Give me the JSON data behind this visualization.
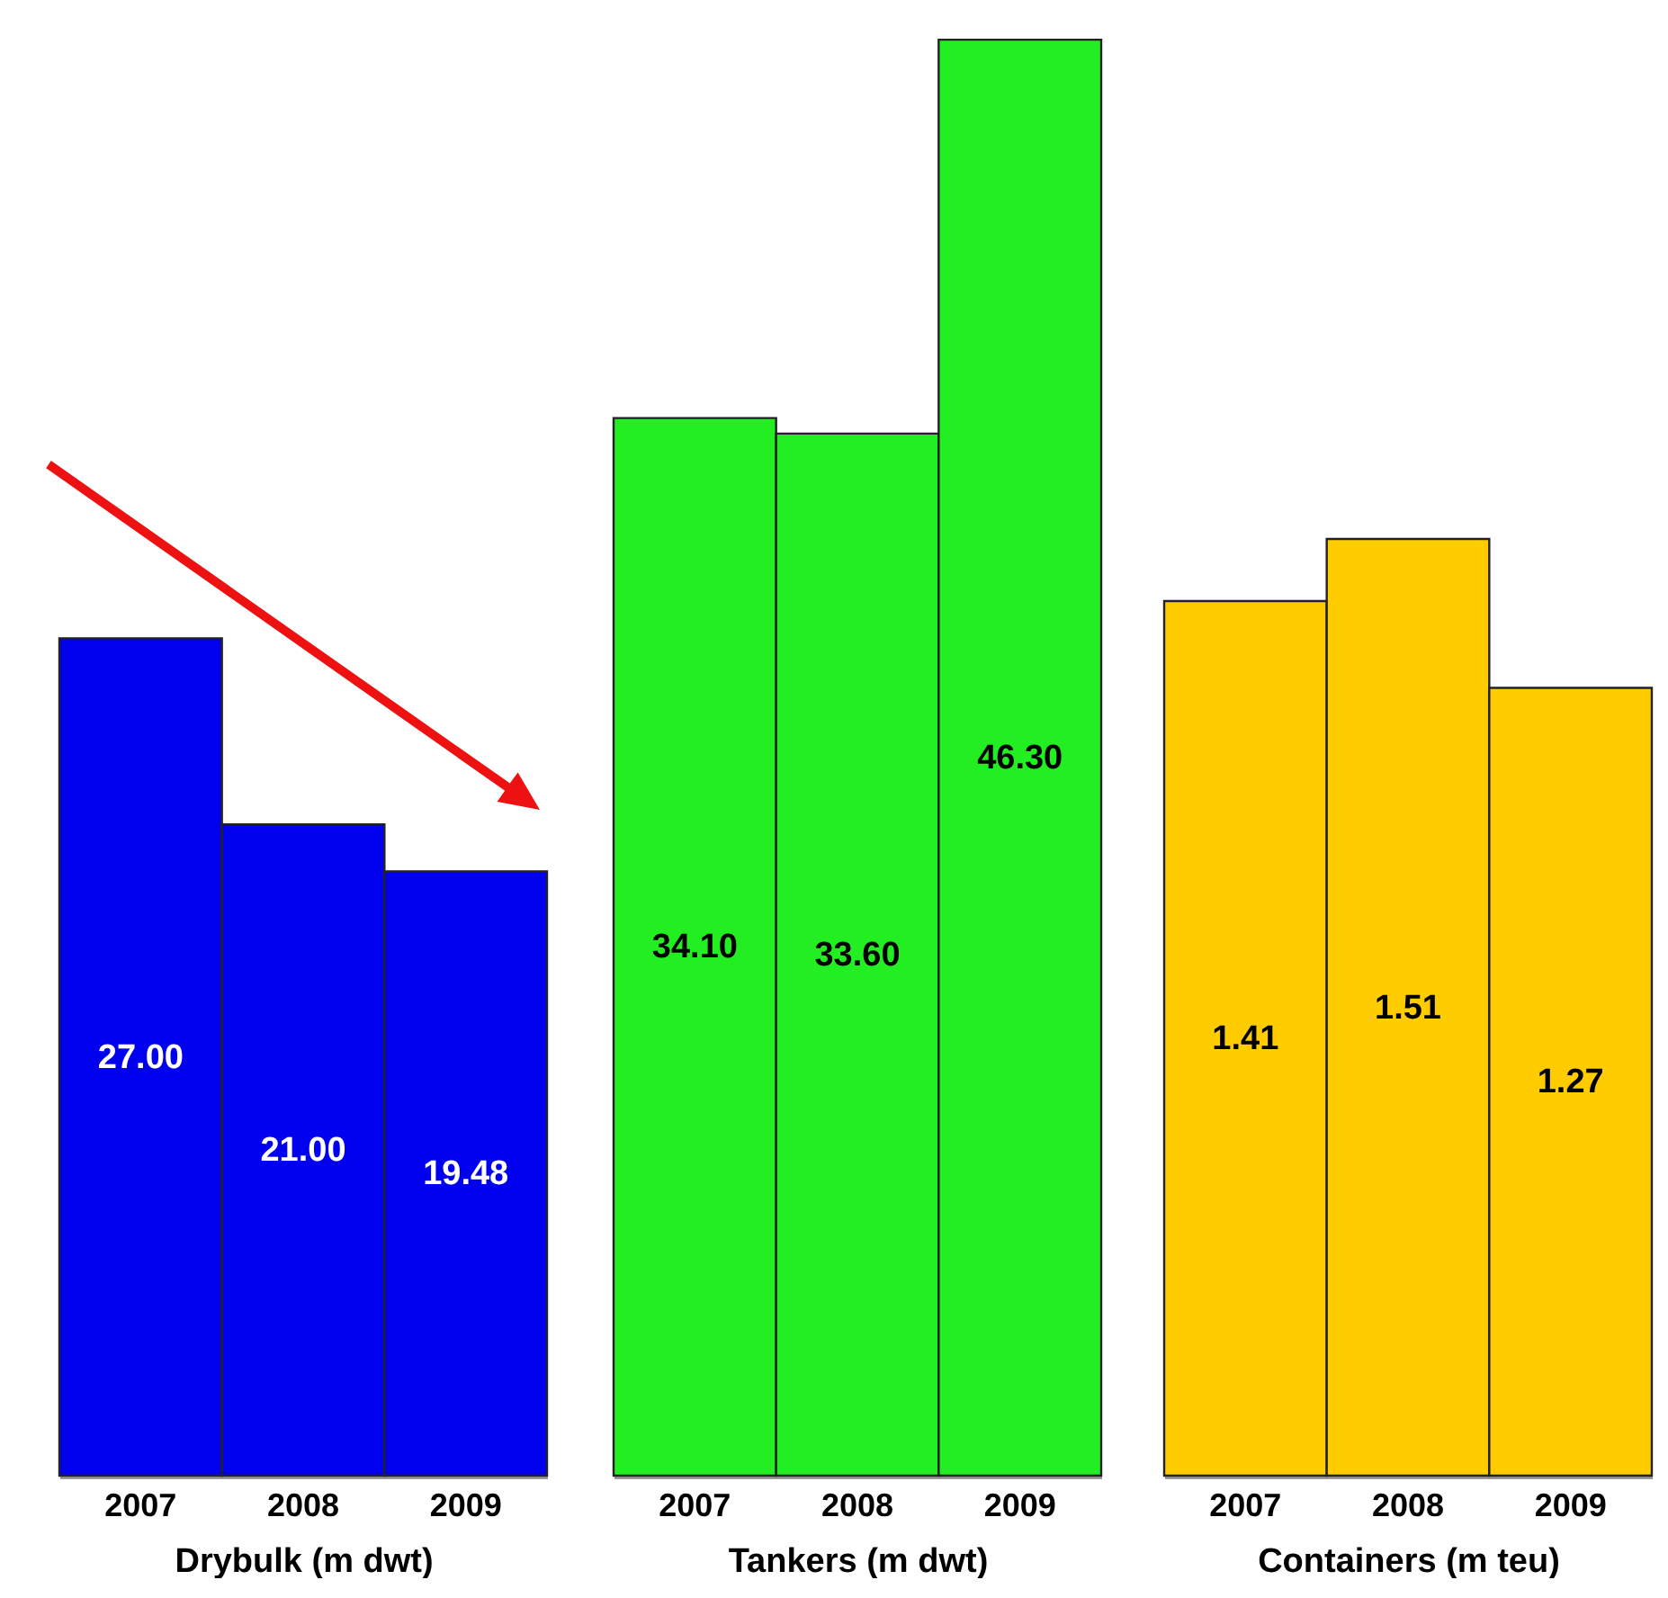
{
  "chart_data": [
    {
      "type": "bar",
      "categories": [
        "2007",
        "2008",
        "2009"
      ],
      "values": [
        27.0,
        21.0,
        19.48
      ],
      "color": "#0000ee",
      "xlabel": "Drybulk (m dwt)",
      "ylim": [
        0,
        47
      ],
      "tick_labels": "x",
      "data_labels": true,
      "value_labels": [
        "27.00",
        "21.00",
        "19.48"
      ]
    },
    {
      "type": "bar",
      "categories": [
        "2007",
        "2008",
        "2009"
      ],
      "values": [
        34.1,
        33.6,
        46.3
      ],
      "color": "#22ee22",
      "xlabel": "Tankers (m dwt)",
      "ylim": [
        0,
        47
      ],
      "tick_labels": "x",
      "data_labels": true,
      "value_labels": [
        "34.10",
        "33.60",
        "46.30"
      ]
    },
    {
      "type": "bar",
      "categories": [
        "2007",
        "2008",
        "2009"
      ],
      "values": [
        1.41,
        1.51,
        1.27
      ],
      "color": "#ffcc00",
      "xlabel": "Containers (m teu)",
      "ylim": [
        0,
        2.35
      ],
      "tick_labels": "x",
      "data_labels": true,
      "value_labels": [
        "1.41",
        "1.51",
        "1.27"
      ]
    }
  ]
}
